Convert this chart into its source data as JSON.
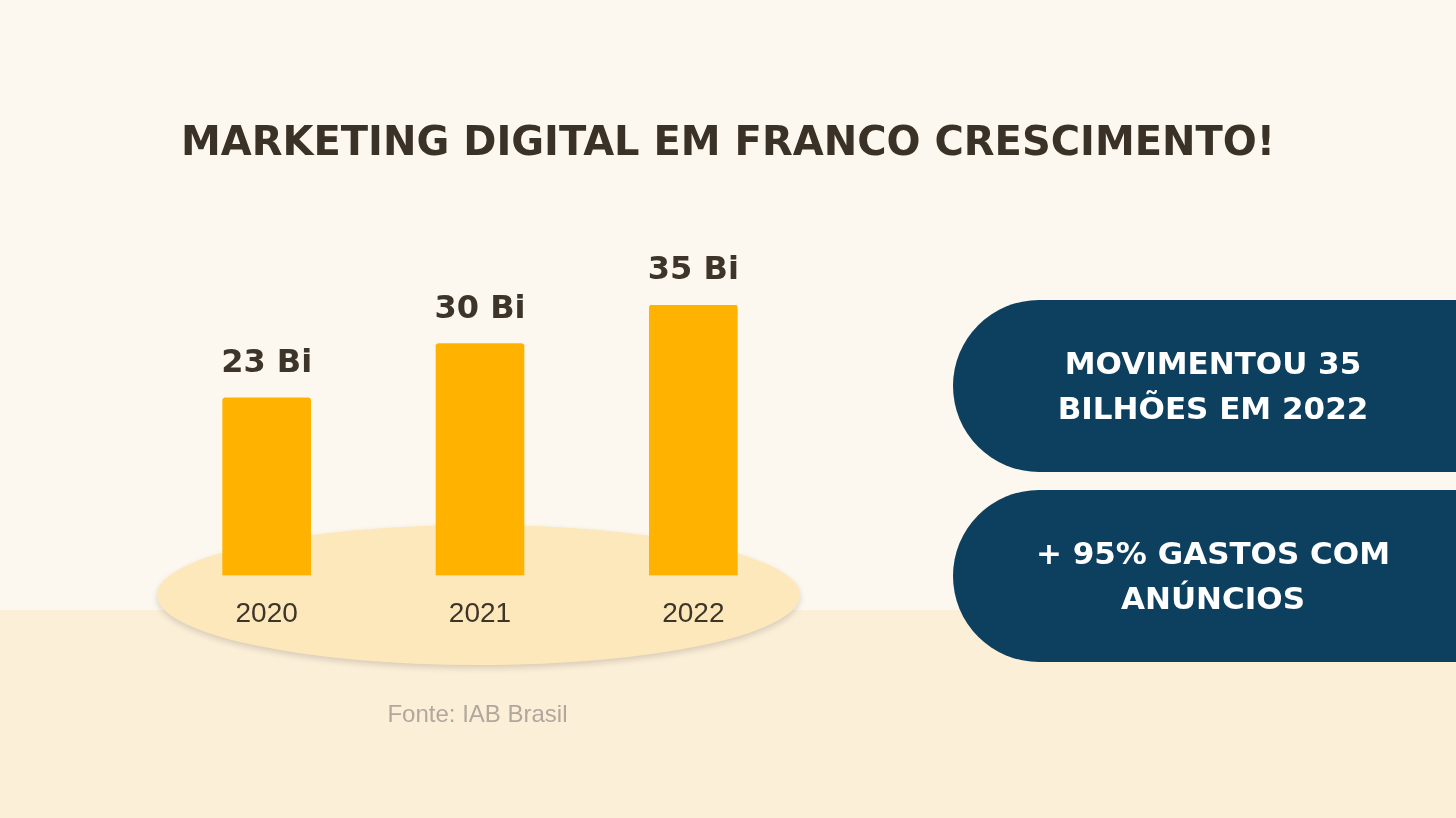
{
  "chart_data": {
    "type": "bar",
    "title": "MARKETING DIGITAL EM FRANCO CRESCIMENTO!",
    "categories": [
      "2020",
      "2021",
      "2022"
    ],
    "values": [
      23,
      30,
      35
    ],
    "value_labels": [
      "23 Bi",
      "30 Bi",
      "35 Bi"
    ],
    "color": "#ffb300",
    "tick_labels": "x",
    "annotations": [
      "MOVIMENTOU 35 BILHÕES EM 2022",
      "+ 95% GASTOS COM ANÚNCIOS",
      "Fonte: IAB Brasil"
    ]
  }
}
